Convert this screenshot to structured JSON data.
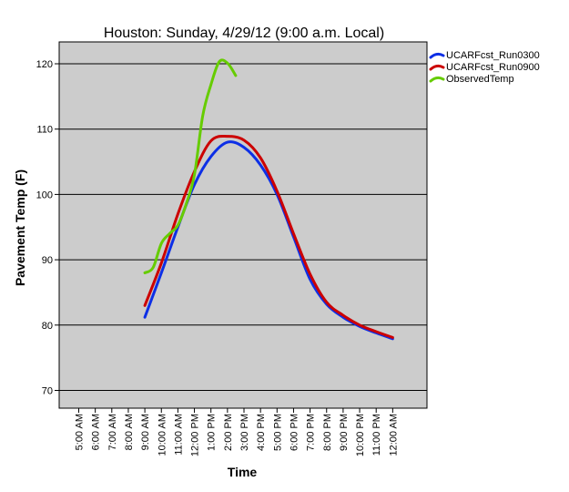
{
  "chart_data": {
    "type": "line",
    "title": "Houston: Sunday, 4/29/12 (9:00 a.m. Local)",
    "xlabel": "Time",
    "ylabel": "Pavement Temp (F)",
    "ylim": [
      67,
      123
    ],
    "yticks": [
      70,
      80,
      90,
      100,
      110,
      120
    ],
    "x_categories": [
      "5:00 AM",
      "6:00 AM",
      "7:00 AM",
      "8:00 AM",
      "9:00 AM",
      "10:00 AM",
      "11:00 AM",
      "12:00 PM",
      "1:00 PM",
      "2:00 PM",
      "3:00 PM",
      "4:00 PM",
      "5:00 PM",
      "6:00 PM",
      "7:00 PM",
      "8:00 PM",
      "9:00 PM",
      "10:00 PM",
      "11:00 PM",
      "12:00 AM"
    ],
    "grid": "horizontal",
    "plot_background": "#cccccc",
    "legend_position": "right",
    "series": [
      {
        "name": "UCARFcst_Run0300",
        "color": "#0d2fe6",
        "x": [
          9,
          10,
          11,
          12,
          13,
          14,
          15,
          16,
          17,
          18,
          19,
          20,
          21,
          22,
          23,
          24
        ],
        "y": [
          81.2,
          88,
          95,
          101.5,
          105.8,
          108,
          107.2,
          104.5,
          100,
          93.5,
          87,
          83.2,
          81.2,
          79.8,
          78.8,
          77.9
        ]
      },
      {
        "name": "UCARFcst_Run0900",
        "color": "#cc0000",
        "x": [
          9,
          10,
          11,
          12,
          13,
          14,
          15,
          16,
          17,
          18,
          19,
          20,
          21,
          22,
          23,
          24
        ],
        "y": [
          83,
          89.5,
          97,
          103.5,
          108.2,
          108.9,
          108.3,
          105.6,
          100.5,
          94,
          87.8,
          83.5,
          81.5,
          80,
          79,
          78.1
        ]
      },
      {
        "name": "ObservedTemp",
        "color": "#66cc00",
        "x": [
          9,
          9.5,
          10,
          10.5,
          11,
          11.5,
          12,
          12.5,
          13,
          13.5,
          14,
          14.5
        ],
        "y": [
          88,
          88.8,
          92.5,
          94,
          95.3,
          98.5,
          103,
          112,
          116.8,
          120.3,
          120.1,
          118.2
        ]
      }
    ]
  }
}
